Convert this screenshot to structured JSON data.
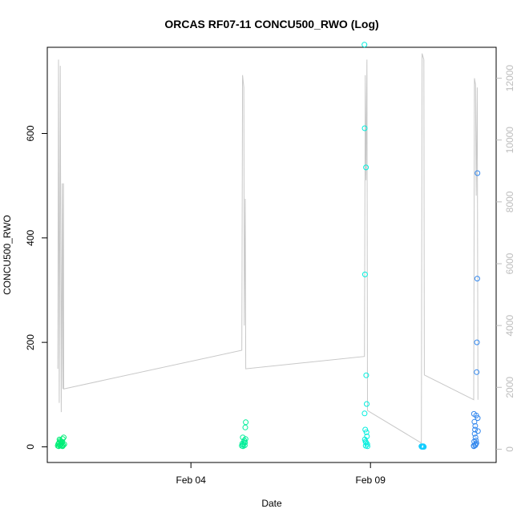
{
  "chart_data": {
    "type": "scatter",
    "title": "ORCAS RF07-11 CONCU500_RWO (Log)",
    "xlabel": "Date",
    "ylabel": "CONCU500_RWO",
    "x_axis": {
      "type": "date",
      "range": [
        "2016-01-31T00:00",
        "2016-02-12T12:00"
      ],
      "ticks": [
        {
          "value": "2016-02-04T00:00",
          "label": "Feb 04"
        },
        {
          "value": "2016-02-09T00:00",
          "label": "Feb 09"
        }
      ]
    },
    "y_axis_left": {
      "range": [
        -30,
        765
      ],
      "ticks": [
        0,
        200,
        400,
        600
      ],
      "tick_labels": [
        "0",
        "200",
        "400",
        "600"
      ]
    },
    "y_axis_right": {
      "range": [
        -430,
        13000
      ],
      "ticks": [
        0,
        2000,
        4000,
        6000,
        8000,
        10000,
        12000
      ],
      "tick_labels": [
        "0",
        "2000",
        "4000",
        "6000",
        "8000",
        "10000",
        "12000"
      ],
      "color": "#bdbdbd"
    },
    "grid": false,
    "legend": "none",
    "line_series": {
      "axis": "right",
      "color": "#c8c8c8",
      "points": [
        [
          "2016-01-31T07:00",
          2600
        ],
        [
          "2016-01-31T07:30",
          12600
        ],
        [
          "2016-01-31T08:00",
          1500
        ],
        [
          "2016-01-31T08:40",
          12400
        ],
        [
          "2016-01-31T09:20",
          1200
        ],
        [
          "2016-01-31T10:00",
          8600
        ],
        [
          "2016-01-31T10:20",
          1950
        ],
        [
          "2016-01-31T10:50",
          8600
        ],
        [
          "2016-01-31T11:00",
          1950
        ],
        [
          "2016-02-05T10:00",
          3200
        ],
        [
          "2016-02-05T10:30",
          12100
        ],
        [
          "2016-02-05T11:20",
          11700
        ],
        [
          "2016-02-05T11:40",
          4000
        ],
        [
          "2016-02-05T12:20",
          8100
        ],
        [
          "2016-02-05T12:40",
          2600
        ],
        [
          "2016-02-08T20:00",
          3000
        ],
        [
          "2016-02-08T20:30",
          12100
        ],
        [
          "2016-02-08T21:00",
          8700
        ],
        [
          "2016-02-08T21:40",
          12600
        ],
        [
          "2016-02-08T22:00",
          1250
        ],
        [
          "2016-02-10T10:00",
          200
        ],
        [
          "2016-02-10T10:30",
          12800
        ],
        [
          "2016-02-10T11:40",
          12600
        ],
        [
          "2016-02-10T12:00",
          2400
        ],
        [
          "2016-02-11T21:00",
          1600
        ],
        [
          "2016-02-11T21:30",
          12000
        ],
        [
          "2016-02-11T22:10",
          11800
        ],
        [
          "2016-02-11T22:40",
          8200
        ],
        [
          "2016-02-11T23:20",
          11700
        ],
        [
          "2016-02-11T23:50",
          1600
        ]
      ]
    },
    "scatter_series": [
      {
        "color": "#00ee77",
        "points": [
          [
            "2016-01-31T07:00",
            2
          ],
          [
            "2016-01-31T07:20",
            5
          ],
          [
            "2016-01-31T07:40",
            1
          ],
          [
            "2016-01-31T08:00",
            8
          ],
          [
            "2016-01-31T08:20",
            3
          ],
          [
            "2016-01-31T08:40",
            12
          ],
          [
            "2016-01-31T09:00",
            4
          ],
          [
            "2016-01-31T09:20",
            7
          ],
          [
            "2016-01-31T09:40",
            2
          ],
          [
            "2016-01-31T10:00",
            9
          ],
          [
            "2016-01-31T10:20",
            15
          ],
          [
            "2016-01-31T10:40",
            3
          ],
          [
            "2016-01-31T11:00",
            18
          ],
          [
            "2016-01-31T11:20",
            5
          ],
          [
            "2016-01-31T08:10",
            14
          ],
          [
            "2016-01-31T09:10",
            10
          ],
          [
            "2016-01-31T07:30",
            6
          ],
          [
            "2016-01-31T10:10",
            1
          ]
        ]
      },
      {
        "color": "#00ee99",
        "points": [
          [
            "2016-02-05T10:00",
            2
          ],
          [
            "2016-02-05T10:20",
            6
          ],
          [
            "2016-02-05T10:40",
            18
          ],
          [
            "2016-02-05T11:00",
            4
          ],
          [
            "2016-02-05T11:20",
            9
          ],
          [
            "2016-02-05T11:40",
            12
          ],
          [
            "2016-02-05T12:00",
            3
          ],
          [
            "2016-02-05T12:20",
            37
          ],
          [
            "2016-02-05T12:40",
            47
          ],
          [
            "2016-02-05T12:30",
            15
          ],
          [
            "2016-02-05T10:50",
            1
          ],
          [
            "2016-02-05T12:10",
            8
          ]
        ]
      },
      {
        "color": "#00eedd",
        "points": [
          [
            "2016-02-08T20:00",
            770
          ],
          [
            "2016-02-08T20:10",
            610
          ],
          [
            "2016-02-08T20:20",
            330
          ],
          [
            "2016-02-08T21:00",
            535
          ],
          [
            "2016-02-08T21:10",
            137
          ],
          [
            "2016-02-08T21:30",
            82
          ],
          [
            "2016-02-08T20:05",
            64
          ],
          [
            "2016-02-08T20:30",
            33
          ],
          [
            "2016-02-08T21:20",
            28
          ],
          [
            "2016-02-08T21:40",
            20
          ],
          [
            "2016-02-08T20:40",
            10
          ],
          [
            "2016-02-08T21:50",
            5
          ],
          [
            "2016-02-08T20:50",
            2
          ],
          [
            "2016-02-08T22:00",
            1
          ],
          [
            "2016-02-08T20:15",
            14
          ],
          [
            "2016-02-08T21:05",
            8
          ]
        ]
      },
      {
        "color": "#11ccff",
        "points": [
          [
            "2016-02-10T10:00",
            1
          ],
          [
            "2016-02-10T10:20",
            0
          ],
          [
            "2016-02-10T10:40",
            1
          ],
          [
            "2016-02-10T11:00",
            0
          ],
          [
            "2016-02-10T11:20",
            1
          ],
          [
            "2016-02-10T11:40",
            0
          ]
        ]
      },
      {
        "color": "#3388ee",
        "points": [
          [
            "2016-02-11T21:00",
            2
          ],
          [
            "2016-02-11T21:20",
            10
          ],
          [
            "2016-02-11T21:40",
            25
          ],
          [
            "2016-02-11T22:00",
            40
          ],
          [
            "2016-02-11T22:20",
            5
          ],
          [
            "2016-02-11T22:40",
            60
          ],
          [
            "2016-02-11T23:00",
            143
          ],
          [
            "2016-02-11T23:10",
            200
          ],
          [
            "2016-02-11T23:20",
            322
          ],
          [
            "2016-02-11T23:30",
            524
          ],
          [
            "2016-02-11T21:10",
            63
          ],
          [
            "2016-02-11T21:30",
            48
          ],
          [
            "2016-02-11T21:50",
            33
          ],
          [
            "2016-02-11T22:10",
            18
          ],
          [
            "2016-02-11T22:30",
            12
          ],
          [
            "2016-02-11T22:50",
            7
          ],
          [
            "2016-02-11T23:40",
            55
          ],
          [
            "2016-02-11T23:50",
            30
          ],
          [
            "2016-02-11T21:05",
            1
          ],
          [
            "2016-02-11T22:05",
            3
          ]
        ]
      }
    ]
  }
}
